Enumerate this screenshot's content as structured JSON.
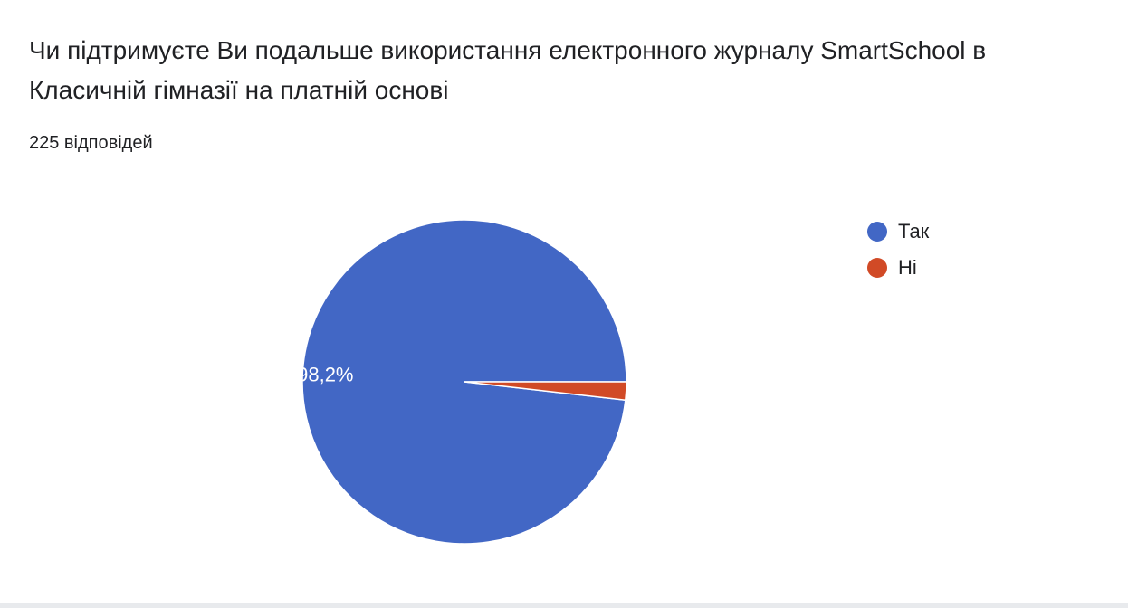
{
  "header": {
    "title": "Чи підтримуєте Ви подальше використання електронного журналу SmartSchool в Класичній гімназії на платній основі",
    "response_count": "225 відповідей"
  },
  "chart_data": {
    "type": "pie",
    "categories": [
      "Так",
      "Ні"
    ],
    "values": [
      98.2,
      1.8
    ],
    "data_labels": [
      "98,2%",
      ""
    ],
    "colors": [
      "#4267c5",
      "#d14a26"
    ],
    "legend_position": "right",
    "start_angle": "3 o'clock",
    "direction": "counter-clockwise"
  }
}
